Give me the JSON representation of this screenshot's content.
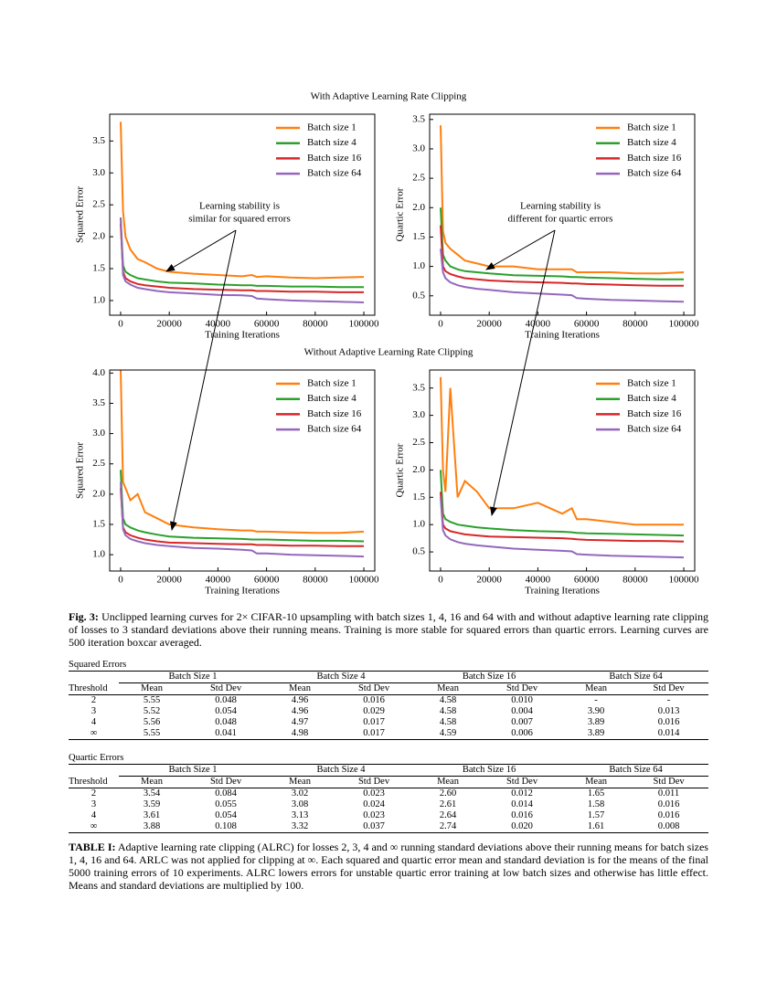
{
  "figure_titles": [
    "With Adaptive Learning Rate Clipping",
    "Without Adaptive Learning Rate Clipping"
  ],
  "chart_data": [
    {
      "type": "line",
      "y_label": "Squared Error",
      "x_label": "Training Iterations",
      "annotation": [
        "Learning stability is",
        "similar for squared errors"
      ],
      "x": [
        0,
        1000,
        2000,
        4000,
        7000,
        10000,
        15000,
        20000,
        30000,
        40000,
        50000,
        54000,
        56000,
        60000,
        70000,
        80000,
        90000,
        100000
      ],
      "xlim": [
        -4500,
        104500
      ],
      "xticks": [
        0,
        20000,
        40000,
        60000,
        80000,
        100000
      ],
      "ylim": [
        0.77,
        3.92
      ],
      "yticks": [
        {
          "value": 1,
          "label": "1.0"
        },
        {
          "value": 1.5,
          "label": "1.5"
        },
        {
          "value": 2,
          "label": "2.0"
        },
        {
          "value": 2.5,
          "label": "2.5"
        },
        {
          "value": 3,
          "label": "3.0"
        },
        {
          "value": 3.5,
          "label": "3.5"
        }
      ],
      "legend": "upper right",
      "series": [
        {
          "name": "Batch size 1",
          "color": "#ff7f0e",
          "values": [
            3.8,
            2.4,
            2.0,
            1.8,
            1.65,
            1.6,
            1.5,
            1.45,
            1.42,
            1.4,
            1.38,
            1.4,
            1.37,
            1.38,
            1.36,
            1.35,
            1.36,
            1.37
          ]
        },
        {
          "name": "Batch size 4",
          "color": "#2ca02c",
          "values": [
            2.3,
            1.55,
            1.45,
            1.4,
            1.35,
            1.33,
            1.3,
            1.28,
            1.27,
            1.25,
            1.24,
            1.24,
            1.23,
            1.23,
            1.22,
            1.22,
            1.21,
            1.21
          ]
        },
        {
          "name": "Batch size 16",
          "color": "#d62728",
          "values": [
            2.2,
            1.45,
            1.35,
            1.3,
            1.26,
            1.24,
            1.22,
            1.2,
            1.18,
            1.17,
            1.16,
            1.16,
            1.15,
            1.15,
            1.14,
            1.14,
            1.13,
            1.13
          ]
        },
        {
          "name": "Batch size 64",
          "color": "#9467bd",
          "values": [
            2.3,
            1.4,
            1.3,
            1.25,
            1.2,
            1.18,
            1.15,
            1.13,
            1.11,
            1.09,
            1.08,
            1.07,
            1.03,
            1.02,
            1.0,
            0.99,
            0.98,
            0.97
          ]
        }
      ]
    },
    {
      "type": "line",
      "y_label": "Quartic Error",
      "x_label": "Training Iterations",
      "annotation": [
        "Learning stability is",
        "different for quartic errors"
      ],
      "x": [
        0,
        1000,
        2000,
        4000,
        7000,
        10000,
        15000,
        20000,
        30000,
        40000,
        50000,
        54000,
        56000,
        60000,
        70000,
        80000,
        90000,
        100000
      ],
      "xlim": [
        -4500,
        104500
      ],
      "xticks": [
        0,
        20000,
        40000,
        60000,
        80000,
        100000
      ],
      "ylim": [
        0.17,
        3.59
      ],
      "yticks": [
        0.5,
        {
          "value": 1,
          "label": "1.0"
        },
        1.5,
        {
          "value": 2,
          "label": "2.0"
        },
        2.5,
        {
          "value": 3,
          "label": "3.0"
        },
        3.5
      ],
      "legend": "upper right",
      "series": [
        {
          "name": "Batch size 1",
          "color": "#ff7f0e",
          "values": [
            3.4,
            1.6,
            1.4,
            1.3,
            1.2,
            1.1,
            1.05,
            1.0,
            1.0,
            0.95,
            0.95,
            0.95,
            0.9,
            0.9,
            0.9,
            0.88,
            0.88,
            0.9
          ]
        },
        {
          "name": "Batch size 4",
          "color": "#2ca02c",
          "values": [
            2.0,
            1.2,
            1.1,
            1.0,
            0.95,
            0.92,
            0.9,
            0.88,
            0.85,
            0.84,
            0.83,
            0.82,
            0.82,
            0.81,
            0.8,
            0.79,
            0.78,
            0.78
          ]
        },
        {
          "name": "Batch size 16",
          "color": "#d62728",
          "values": [
            1.7,
            1.0,
            0.92,
            0.87,
            0.83,
            0.8,
            0.78,
            0.76,
            0.74,
            0.73,
            0.72,
            0.71,
            0.71,
            0.7,
            0.69,
            0.68,
            0.67,
            0.67
          ]
        },
        {
          "name": "Batch size 64",
          "color": "#9467bd",
          "values": [
            1.3,
            0.9,
            0.8,
            0.73,
            0.68,
            0.65,
            0.62,
            0.6,
            0.56,
            0.54,
            0.52,
            0.51,
            0.46,
            0.45,
            0.43,
            0.42,
            0.41,
            0.4
          ]
        }
      ]
    },
    {
      "type": "line",
      "y_label": "Squared Error",
      "x_label": "Training Iterations",
      "x": [
        0,
        1000,
        2000,
        4000,
        7000,
        10000,
        15000,
        20000,
        30000,
        40000,
        50000,
        54000,
        56000,
        60000,
        70000,
        80000,
        90000,
        100000
      ],
      "xlim": [
        -4500,
        104500
      ],
      "xticks": [
        0,
        20000,
        40000,
        60000,
        80000,
        100000
      ],
      "ylim": [
        0.73,
        4.05
      ],
      "yticks": [
        {
          "value": 1,
          "label": "1.0"
        },
        1.5,
        {
          "value": 2,
          "label": "2.0"
        },
        2.5,
        {
          "value": 3,
          "label": "3.0"
        },
        3.5,
        {
          "value": 4,
          "label": "4.0"
        }
      ],
      "legend": "upper right",
      "series": [
        {
          "name": "Batch size 1",
          "color": "#ff7f0e",
          "values": [
            4.05,
            2.2,
            2.1,
            1.9,
            2.0,
            1.7,
            1.6,
            1.5,
            1.45,
            1.42,
            1.4,
            1.4,
            1.38,
            1.38,
            1.37,
            1.36,
            1.36,
            1.38
          ]
        },
        {
          "name": "Batch size 4",
          "color": "#2ca02c",
          "values": [
            2.4,
            1.6,
            1.5,
            1.45,
            1.4,
            1.37,
            1.33,
            1.3,
            1.28,
            1.27,
            1.26,
            1.25,
            1.25,
            1.25,
            1.24,
            1.23,
            1.23,
            1.22
          ]
        },
        {
          "name": "Batch size 16",
          "color": "#d62728",
          "values": [
            2.1,
            1.45,
            1.37,
            1.32,
            1.28,
            1.25,
            1.22,
            1.2,
            1.19,
            1.18,
            1.17,
            1.17,
            1.16,
            1.16,
            1.15,
            1.15,
            1.14,
            1.14
          ]
        },
        {
          "name": "Batch size 64",
          "color": "#9467bd",
          "values": [
            2.2,
            1.42,
            1.32,
            1.26,
            1.22,
            1.19,
            1.16,
            1.14,
            1.11,
            1.1,
            1.08,
            1.07,
            1.02,
            1.02,
            1.0,
            0.99,
            0.98,
            0.97
          ]
        }
      ]
    },
    {
      "type": "line",
      "y_label": "Quartic Error",
      "x_label": "Training Iterations",
      "x": [
        0,
        1000,
        2000,
        4000,
        7000,
        10000,
        15000,
        20000,
        30000,
        40000,
        50000,
        54000,
        56000,
        60000,
        70000,
        80000,
        90000,
        100000
      ],
      "xlim": [
        -4500,
        104500
      ],
      "xticks": [
        0,
        20000,
        40000,
        60000,
        80000,
        100000
      ],
      "ylim": [
        0.15,
        3.83
      ],
      "yticks": [
        0.5,
        {
          "value": 1,
          "label": "1.0"
        },
        1.5,
        {
          "value": 2,
          "label": "2.0"
        },
        2.5,
        {
          "value": 3,
          "label": "3.0"
        },
        3.5
      ],
      "legend": "upper right",
      "series": [
        {
          "name": "Batch size 1",
          "color": "#ff7f0e",
          "values": [
            3.7,
            2.0,
            1.6,
            3.5,
            1.5,
            1.8,
            1.6,
            1.3,
            1.3,
            1.4,
            1.2,
            1.3,
            1.1,
            1.1,
            1.05,
            1.0,
            1.0,
            1.0
          ]
        },
        {
          "name": "Batch size 4",
          "color": "#2ca02c",
          "values": [
            2.0,
            1.2,
            1.1,
            1.05,
            1.0,
            0.98,
            0.95,
            0.93,
            0.9,
            0.88,
            0.87,
            0.86,
            0.85,
            0.84,
            0.83,
            0.82,
            0.81,
            0.8
          ]
        },
        {
          "name": "Batch size 16",
          "color": "#d62728",
          "values": [
            1.6,
            1.0,
            0.93,
            0.88,
            0.85,
            0.82,
            0.8,
            0.78,
            0.77,
            0.76,
            0.75,
            0.74,
            0.73,
            0.72,
            0.71,
            0.7,
            0.7,
            0.69
          ]
        },
        {
          "name": "Batch size 64",
          "color": "#9467bd",
          "values": [
            1.5,
            0.9,
            0.8,
            0.73,
            0.68,
            0.65,
            0.62,
            0.6,
            0.56,
            0.54,
            0.52,
            0.51,
            0.46,
            0.45,
            0.43,
            0.42,
            0.41,
            0.4
          ]
        }
      ]
    }
  ],
  "figure_caption": {
    "label": "Fig. 3:",
    "text": "Unclipped learning curves for 2× CIFAR-10 upsampling with batch sizes 1, 4, 16 and 64 with and without adaptive learning rate clipping of losses to 3 standard deviations above their running means. Training is more stable for squared errors than quartic errors. Learning curves are 500 iteration boxcar averaged."
  },
  "tables": [
    {
      "title": "Squared Errors",
      "groups": [
        "Batch Size 1",
        "Batch Size 4",
        "Batch Size 16",
        "Batch Size 64"
      ],
      "header": [
        "Threshold",
        "Mean",
        "Std Dev",
        "Mean",
        "Std Dev",
        "Mean",
        "Std Dev",
        "Mean",
        "Std Dev"
      ],
      "rows": [
        [
          "2",
          "5.55",
          "0.048",
          "4.96",
          "0.016",
          "4.58",
          "0.010",
          "-",
          "-"
        ],
        [
          "3",
          "5.52",
          "0.054",
          "4.96",
          "0.029",
          "4.58",
          "0.004",
          "3.90",
          "0.013"
        ],
        [
          "4",
          "5.56",
          "0.048",
          "4.97",
          "0.017",
          "4.58",
          "0.007",
          "3.89",
          "0.016"
        ],
        [
          "∞",
          "5.55",
          "0.041",
          "4.98",
          "0.017",
          "4.59",
          "0.006",
          "3.89",
          "0.014"
        ]
      ]
    },
    {
      "title": "Quartic Errors",
      "groups": [
        "Batch Size 1",
        "Batch Size 4",
        "Batch Size 16",
        "Batch Size 64"
      ],
      "header": [
        "Threshold",
        "Mean",
        "Std Dev",
        "Mean",
        "Std Dev",
        "Mean",
        "Std Dev",
        "Mean",
        "Std Dev"
      ],
      "rows": [
        [
          "2",
          "3.54",
          "0.084",
          "3.02",
          "0.023",
          "2.60",
          "0.012",
          "1.65",
          "0.011"
        ],
        [
          "3",
          "3.59",
          "0.055",
          "3.08",
          "0.024",
          "2.61",
          "0.014",
          "1.58",
          "0.016"
        ],
        [
          "4",
          "3.61",
          "0.054",
          "3.13",
          "0.023",
          "2.64",
          "0.016",
          "1.57",
          "0.016"
        ],
        [
          "∞",
          "3.88",
          "0.108",
          "3.32",
          "0.037",
          "2.74",
          "0.020",
          "1.61",
          "0.008"
        ]
      ]
    }
  ],
  "table_caption": {
    "label": "TABLE I:",
    "text": "Adaptive learning rate clipping (ALRC) for losses 2, 3, 4 and ∞ running standard deviations above their running means for batch sizes 1, 4, 16 and 64. ARLC was not applied for clipping at ∞. Each squared and quartic error mean and standard deviation is for the means of the final 5000 training errors of 10 experiments. ALRC lowers errors for unstable quartic error training at low batch sizes and otherwise has little effect. Means and standard deviations are multiplied by 100."
  }
}
